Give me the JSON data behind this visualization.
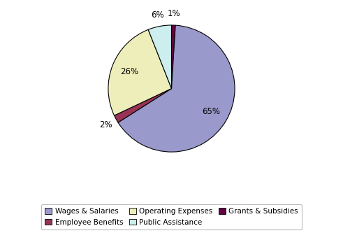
{
  "labels": [
    "Wages & Salaries",
    "Employee Benefits",
    "Operating Expenses",
    "Public Assistance",
    "Grants & Subsidies"
  ],
  "values": [
    65,
    2,
    26,
    6,
    1
  ],
  "colors": [
    "#9999cc",
    "#993355",
    "#eeeebb",
    "#cceeee",
    "#660044"
  ],
  "pct_labels": [
    "65%",
    "2%",
    "26%",
    "6%",
    "1%"
  ],
  "startangle": 90,
  "legend_order": [
    "Wages & Salaries",
    "Employee Benefits",
    "Operating Expenses",
    "Public Assistance",
    "Grants & Subsidies"
  ],
  "legend_colors_order": [
    "#9999cc",
    "#993355",
    "#eeeebb",
    "#cceeee",
    "#660044"
  ],
  "background_color": "#ffffff",
  "edge_color": "#000000",
  "pie_order": [
    "Grants & Subsidies",
    "Wages & Salaries",
    "Employee Benefits",
    "Operating Expenses",
    "Public Assistance"
  ],
  "pie_values": [
    1,
    65,
    2,
    26,
    6
  ],
  "pie_colors": [
    "#660044",
    "#9999cc",
    "#993355",
    "#eeeebb",
    "#cceeee"
  ],
  "pie_pct": [
    "1%",
    "65%",
    "2%",
    "26%",
    "6%"
  ]
}
